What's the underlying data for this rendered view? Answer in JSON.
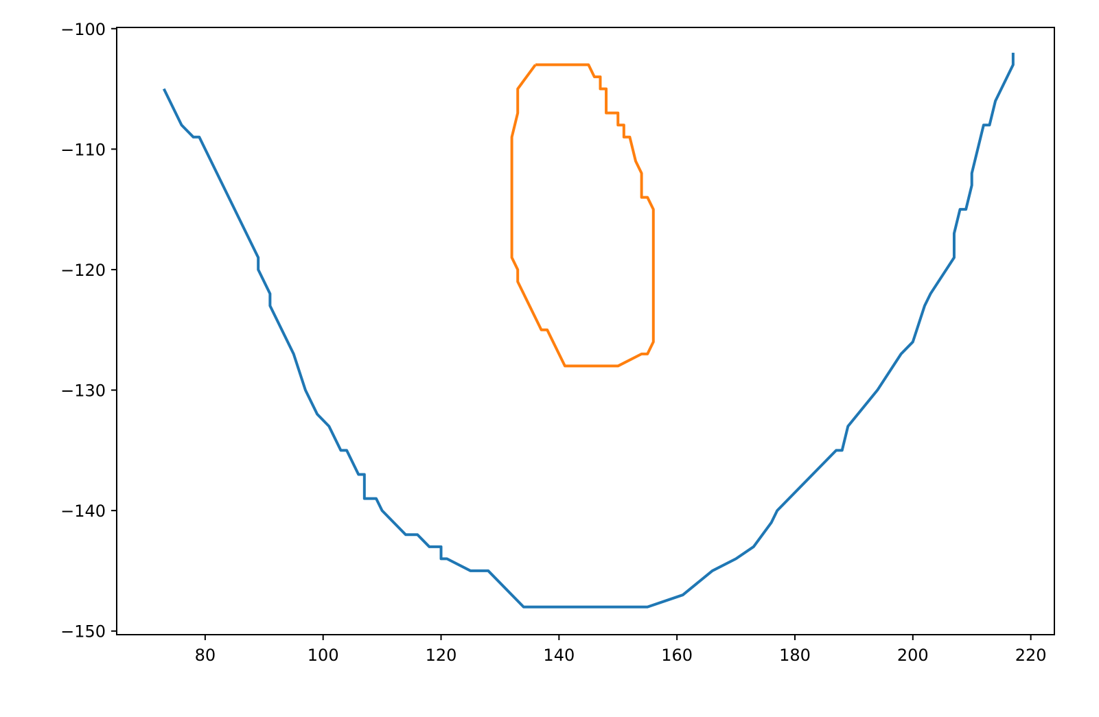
{
  "chart_data": {
    "type": "line",
    "title": "",
    "xlabel": "",
    "ylabel": "",
    "xlim": [
      65,
      224
    ],
    "ylim": [
      -150.3,
      -99.9
    ],
    "xticks": [
      80,
      100,
      120,
      140,
      160,
      180,
      200,
      220
    ],
    "yticks": [
      -100,
      -110,
      -120,
      -130,
      -140,
      -150
    ],
    "xtick_labels": [
      "80",
      "100",
      "120",
      "140",
      "160",
      "180",
      "200",
      "220"
    ],
    "ytick_labels": [
      "−100",
      "−110",
      "−120",
      "−130",
      "−140",
      "−150"
    ],
    "grid": false,
    "legend": "none",
    "series": [
      {
        "color": "#1f77b4",
        "x": [
          73,
          76,
          78,
          79,
          89,
          89,
          91,
          91,
          95,
          97,
          99,
          101,
          103,
          104,
          106,
          107,
          107,
          109,
          110,
          114,
          116,
          118,
          120,
          120,
          121,
          125,
          128,
          134,
          155,
          161,
          166,
          170,
          173,
          176,
          177,
          187,
          188,
          189,
          194,
          198,
          200,
          202,
          203,
          207,
          207,
          208,
          209,
          210,
          210,
          212,
          213,
          214,
          217,
          217
        ],
        "y": [
          -105,
          -108,
          -109,
          -109,
          -119,
          -120,
          -122,
          -123,
          -127,
          -130,
          -132,
          -133,
          -135,
          -135,
          -137,
          -137,
          -139,
          -139,
          -140,
          -142,
          -142,
          -143,
          -143,
          -144,
          -144,
          -145,
          -145,
          -148,
          -148,
          -147,
          -145,
          -144,
          -143,
          -141,
          -140,
          -135,
          -135,
          -133,
          -130,
          -127,
          -126,
          -123,
          -122,
          -119,
          -117,
          -115,
          -115,
          -113,
          -112,
          -108,
          -108,
          -106,
          -103,
          -102
        ]
      },
      {
        "color": "#ff7f0e",
        "x": [
          136,
          145,
          146,
          147,
          147,
          148,
          148,
          150,
          150,
          151,
          151,
          152,
          153,
          154,
          154,
          155,
          156,
          156,
          155,
          154,
          150,
          141,
          138,
          137,
          133,
          133,
          132,
          132,
          133,
          133,
          136
        ],
        "y": [
          -103,
          -103,
          -104,
          -104,
          -105,
          -105,
          -107,
          -107,
          -108,
          -108,
          -109,
          -109,
          -111,
          -112,
          -114,
          -114,
          -115,
          -126,
          -127,
          -127,
          -128,
          -128,
          -125,
          -125,
          -121,
          -120,
          -119,
          -109,
          -107,
          -105,
          -103
        ]
      }
    ]
  }
}
